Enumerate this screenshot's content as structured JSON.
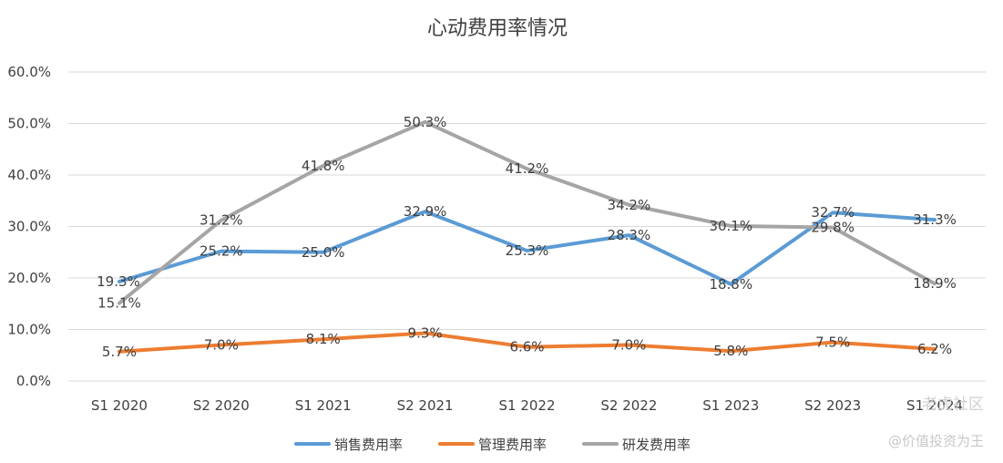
{
  "watermark": {
    "brand": "老虎社区",
    "author": "@价值投资为王"
  },
  "chart_data": {
    "type": "line",
    "title": "心动费用率情况",
    "categories": [
      "S1 2020",
      "S2 2020",
      "S1 2021",
      "S2 2021",
      "S1 2022",
      "S2 2022",
      "S1 2023",
      "S2 2023",
      "S1 2024"
    ],
    "ylim": [
      0,
      60
    ],
    "yticks": [
      "0.0%",
      "10.0%",
      "20.0%",
      "30.0%",
      "40.0%",
      "50.0%",
      "60.0%"
    ],
    "grid": true,
    "legend": "bottom",
    "series": [
      {
        "name": "销售费用率",
        "color": "#5b9bd5",
        "values": [
          19.3,
          25.2,
          25.0,
          32.9,
          25.3,
          28.3,
          18.8,
          32.7,
          31.3
        ],
        "labels": [
          "19.3%",
          "25.2%",
          "25.0%",
          "32.9%",
          "25.3%",
          "28.3%",
          "18.8%",
          "32.7%",
          "31.3%"
        ]
      },
      {
        "name": "管理费用率",
        "color": "#ed7d31",
        "values": [
          5.7,
          7.0,
          8.1,
          9.3,
          6.6,
          7.0,
          5.8,
          7.5,
          6.2
        ],
        "labels": [
          "5.7%",
          "7.0%",
          "8.1%",
          "9.3%",
          "6.6%",
          "7.0%",
          "5.8%",
          "7.5%",
          "6.2%"
        ]
      },
      {
        "name": "研发费用率",
        "color": "#a5a5a5",
        "values": [
          15.1,
          31.2,
          41.8,
          50.3,
          41.2,
          34.2,
          30.1,
          29.8,
          18.9
        ],
        "labels": [
          "15.1%",
          "31.2%",
          "41.8%",
          "50.3%",
          "41.2%",
          "34.2%",
          "30.1%",
          "29.8%",
          "18.9%"
        ]
      }
    ]
  }
}
